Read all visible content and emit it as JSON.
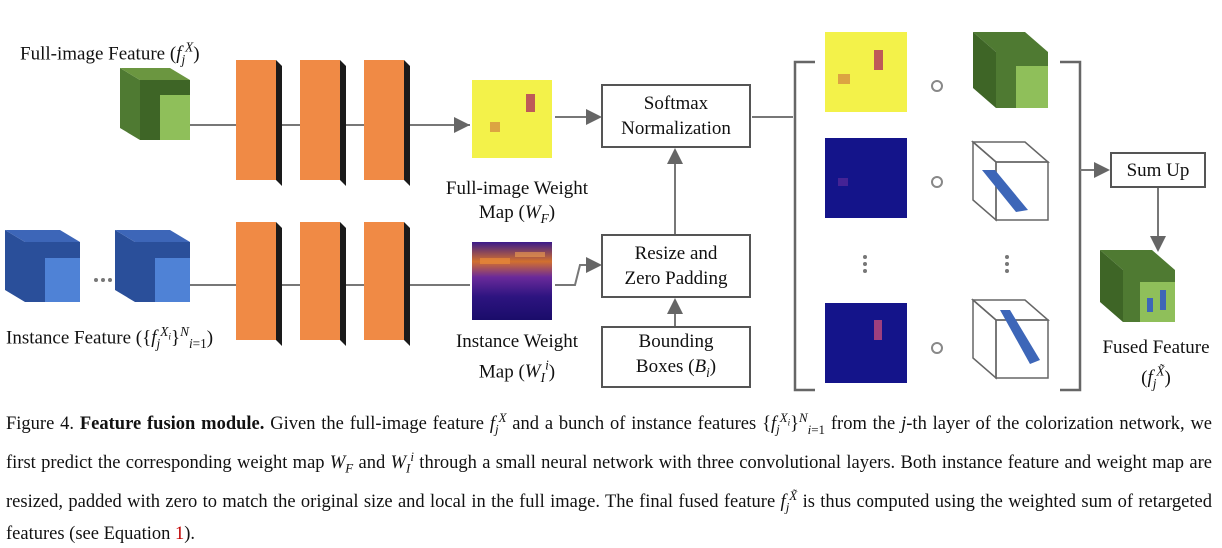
{
  "labels": {
    "full_image_feature": "Full-image Feature",
    "full_image_weight_line1": "Full-image Weight",
    "full_image_weight_line2": "Map",
    "instance_feature": "Instance Feature",
    "instance_weight_line1": "Instance Weight",
    "instance_weight_line2": "Map",
    "fused_feature": "Fused Feature",
    "ellipsis_h": "···",
    "ellipsis_v": "⋮",
    "odot": "∘"
  },
  "boxes": {
    "softmax_line1": "Softmax",
    "softmax_line2": "Normalization",
    "resize_line1": "Resize and",
    "resize_line2": "Zero Padding",
    "bbox_line1": "Bounding",
    "bbox_line2": "Boxes",
    "sumup": "Sum Up"
  },
  "caption": {
    "figure_label": "Figure 4.",
    "title": "Feature fusion module.",
    "text_1": " Given the full-image feature ",
    "text_2": " and a bunch of instance features ",
    "text_3": " from the ",
    "text_4": "j",
    "text_5": "-th layer of the colorization network, we first predict the corresponding weight map ",
    "text_6": " and ",
    "text_7": " through a small neural network with three convolutional layers. Both instance feature and weight map are resized, padded with zero to match the original size and local in the full image. The final fused feature ",
    "text_8": " is thus computed using the weighted sum of retargeted features (see Equation ",
    "equation_ref": "1",
    "text_9": ")."
  },
  "colors": {
    "green_front": "#8fbf5a",
    "green_side": "#4f7a32",
    "blue_front": "#4f82d6",
    "blue_side": "#2a4f9a",
    "orange": "#f08a45",
    "yellow_map": "#f3f24a",
    "navy_map": "#14148a",
    "box_border": "#555555",
    "equation_ref": "#c00000"
  }
}
